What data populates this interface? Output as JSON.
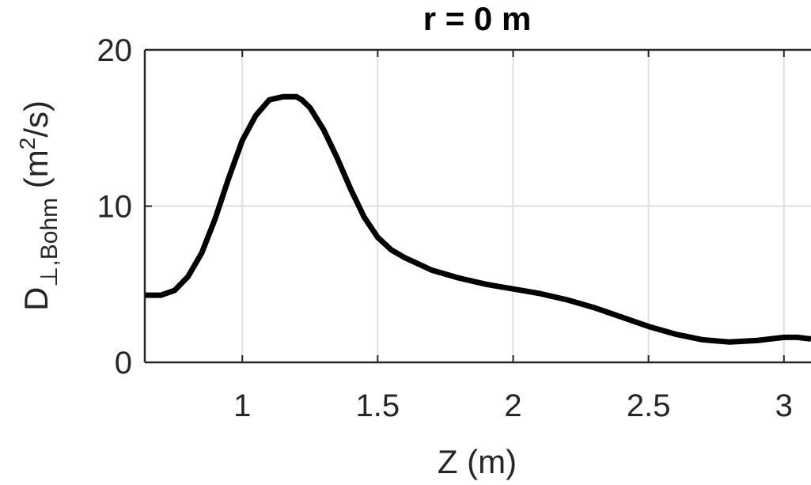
{
  "chart_data": {
    "type": "line",
    "title": "r = 0 m",
    "xlabel": "Z (m)",
    "ylabel": {
      "main": "D",
      "subscript": "⊥,Bohm",
      "unit_open": " (m",
      "unit_sup": "2",
      "unit_close": "/s)"
    },
    "xlim": [
      0.64,
      3.1
    ],
    "ylim": [
      0,
      20
    ],
    "xticks": [
      1,
      1.5,
      2,
      2.5,
      3
    ],
    "xtick_labels": [
      "1",
      "1.5",
      "2",
      "2.5",
      "3"
    ],
    "yticks": [
      0,
      10,
      20
    ],
    "ytick_labels": [
      "0",
      "10",
      "20"
    ],
    "grid": true,
    "colors": {
      "line": "#000000",
      "grid": "#dfdfdf",
      "axis": "#262626"
    },
    "series": [
      {
        "x": [
          0.64,
          0.7,
          0.75,
          0.8,
          0.85,
          0.9,
          0.95,
          1.0,
          1.05,
          1.1,
          1.15,
          1.18,
          1.2,
          1.22,
          1.25,
          1.3,
          1.35,
          1.4,
          1.45,
          1.5,
          1.55,
          1.6,
          1.65,
          1.7,
          1.8,
          1.9,
          2.0,
          2.1,
          2.2,
          2.3,
          2.4,
          2.5,
          2.6,
          2.7,
          2.8,
          2.9,
          3.0,
          3.05,
          3.1
        ],
        "y": [
          4.3,
          4.3,
          4.6,
          5.5,
          7.0,
          9.2,
          11.8,
          14.2,
          15.8,
          16.8,
          17.0,
          17.0,
          17.0,
          16.8,
          16.3,
          14.9,
          13.1,
          11.1,
          9.3,
          8.0,
          7.2,
          6.7,
          6.3,
          5.9,
          5.4,
          5.0,
          4.7,
          4.4,
          4.0,
          3.5,
          2.9,
          2.3,
          1.8,
          1.45,
          1.3,
          1.4,
          1.6,
          1.6,
          1.5
        ]
      }
    ]
  }
}
